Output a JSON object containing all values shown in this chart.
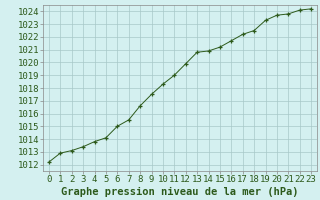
{
  "x": [
    0,
    1,
    2,
    3,
    4,
    5,
    6,
    7,
    8,
    9,
    10,
    11,
    12,
    13,
    14,
    15,
    16,
    17,
    18,
    19,
    20,
    21,
    22,
    23
  ],
  "y": [
    1012.2,
    1012.9,
    1013.1,
    1013.4,
    1013.8,
    1014.1,
    1015.0,
    1015.5,
    1016.6,
    1017.5,
    1018.3,
    1019.0,
    1019.9,
    1020.8,
    1020.9,
    1021.2,
    1021.7,
    1022.2,
    1022.5,
    1023.3,
    1023.7,
    1023.8,
    1024.1,
    1024.2
  ],
  "xlim": [
    -0.5,
    23.5
  ],
  "ylim": [
    1011.5,
    1024.5
  ],
  "yticks": [
    1012,
    1013,
    1014,
    1015,
    1016,
    1017,
    1018,
    1019,
    1020,
    1021,
    1022,
    1023,
    1024
  ],
  "xticks": [
    0,
    1,
    2,
    3,
    4,
    5,
    6,
    7,
    8,
    9,
    10,
    11,
    12,
    13,
    14,
    15,
    16,
    17,
    18,
    19,
    20,
    21,
    22,
    23
  ],
  "xlabel": "Graphe pression niveau de la mer (hPa)",
  "line_color": "#2d5a1b",
  "marker": "+",
  "marker_color": "#2d5a1b",
  "background_color": "#d4f0f0",
  "grid_color": "#a8c8c8",
  "tick_label_color": "#2d5a1b",
  "xlabel_color": "#2d5a1b",
  "xlabel_fontsize": 7.5,
  "tick_fontsize": 6.5
}
